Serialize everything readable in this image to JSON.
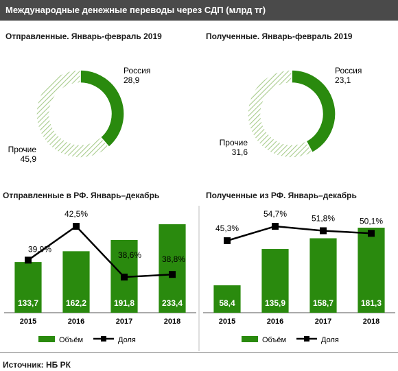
{
  "header": {
    "title": "Международные денежные переводы через СДП (млрд тг)"
  },
  "source": "Источник:  НБ РК",
  "colors": {
    "green": "#2a8a0e",
    "line": "#000000",
    "hatch": "#a8cc8c"
  },
  "chart_data": [
    {
      "type": "pie",
      "title": "Отправленные. Январь-февраль 2019",
      "slices": [
        {
          "label": "Россия",
          "value": 28.9,
          "display": "28,9"
        },
        {
          "label": "Прочие",
          "value": 45.9,
          "display": "45,9"
        }
      ]
    },
    {
      "type": "pie",
      "title": "Полученные. Январь-февраль 2019",
      "slices": [
        {
          "label": "Россия",
          "value": 23.1,
          "display": "23,1"
        },
        {
          "label": "Прочие",
          "value": 31.6,
          "display": "31,6"
        }
      ]
    },
    {
      "type": "bar",
      "title": "Отправленные  в РФ. Январь–декабрь",
      "categories": [
        "2015",
        "2016",
        "2017",
        "2018"
      ],
      "series": [
        {
          "name": "Объём",
          "values": [
            133.7,
            162.2,
            191.8,
            233.4
          ],
          "labels": [
            "133,7",
            "162,2",
            "191,8",
            "233,4"
          ]
        },
        {
          "name": "Доля",
          "values": [
            39.9,
            42.5,
            38.6,
            38.8
          ],
          "labels": [
            "39,9%",
            "42,5%",
            "38,6%",
            "38,8%"
          ]
        }
      ]
    },
    {
      "type": "bar",
      "title": "Полученные из РФ. Январь–декабрь",
      "categories": [
        "2015",
        "2016",
        "2017",
        "2018"
      ],
      "series": [
        {
          "name": "Объём",
          "values": [
            58.4,
            135.9,
            158.7,
            181.3
          ],
          "labels": [
            "58,4",
            "135,9",
            "158,7",
            "181,3"
          ]
        },
        {
          "name": "Доля",
          "values": [
            45.3,
            54.7,
            51.8,
            50.1
          ],
          "labels": [
            "45,3%",
            "54,7%",
            "51,8%",
            "50,1%"
          ]
        }
      ]
    }
  ]
}
